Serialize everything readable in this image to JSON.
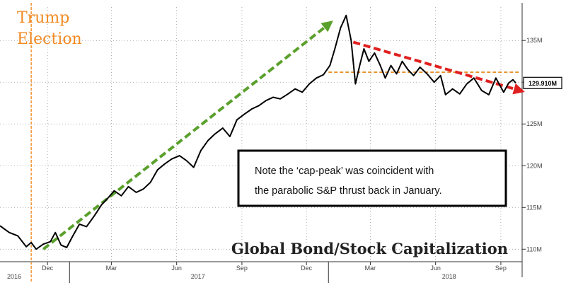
{
  "chart_data": {
    "type": "line",
    "title": "Global Bond/Stock Capitalization",
    "event_label_line1": "Trump",
    "event_label_line2": "Election",
    "event_date": "2016-11-08",
    "note_line1": "Note the ‘cap-peak’ was coincident with",
    "note_line2": "the parabolic S&P thrust back in January.",
    "last_value_label": "129.910M",
    "y_ticks": [
      {
        "value": 110,
        "label": "110M"
      },
      {
        "value": 115,
        "label": "115M"
      },
      {
        "value": 120,
        "label": "120M"
      },
      {
        "value": 125,
        "label": "125M"
      },
      {
        "value": 130,
        "label": ""
      },
      {
        "value": 135,
        "label": "135M"
      }
    ],
    "x_ticks": [
      {
        "date": "2016-12-01",
        "label": "Dec"
      },
      {
        "date": "2017-03-01",
        "label": "Mar"
      },
      {
        "date": "2017-06-01",
        "label": "Jun"
      },
      {
        "date": "2017-09-01",
        "label": "Sep"
      },
      {
        "date": "2017-12-01",
        "label": "Dec"
      },
      {
        "date": "2018-03-01",
        "label": "Mar"
      },
      {
        "date": "2018-06-01",
        "label": "Jun"
      },
      {
        "date": "2018-09-01",
        "label": "Sep"
      }
    ],
    "year_labels": [
      {
        "date": "2016-10-15",
        "label": "2016"
      },
      {
        "date": "2017-07-01",
        "label": "2017"
      },
      {
        "date": "2018-06-20",
        "label": "2018"
      }
    ],
    "ylim": [
      108.5,
      139
    ],
    "xlim": [
      "2016-09-25",
      "2018-10-01"
    ],
    "series": [
      {
        "color": "#000000",
        "points": [
          [
            "2016-09-25",
            112.8
          ],
          [
            "2016-10-08",
            112.0
          ],
          [
            "2016-10-20",
            111.6
          ],
          [
            "2016-11-01",
            110.3
          ],
          [
            "2016-11-08",
            110.8
          ],
          [
            "2016-11-15",
            110.0
          ],
          [
            "2016-11-25",
            110.6
          ],
          [
            "2016-12-05",
            110.9
          ],
          [
            "2016-12-12",
            112.0
          ],
          [
            "2016-12-20",
            110.5
          ],
          [
            "2016-12-28",
            110.2
          ],
          [
            "2017-01-05",
            111.5
          ],
          [
            "2017-01-15",
            113.0
          ],
          [
            "2017-01-25",
            112.7
          ],
          [
            "2017-02-05",
            114.0
          ],
          [
            "2017-02-15",
            115.3
          ],
          [
            "2017-02-25",
            116.2
          ],
          [
            "2017-03-05",
            117.0
          ],
          [
            "2017-03-15",
            116.4
          ],
          [
            "2017-03-25",
            117.5
          ],
          [
            "2017-04-05",
            116.8
          ],
          [
            "2017-04-15",
            117.2
          ],
          [
            "2017-04-25",
            118.0
          ],
          [
            "2017-05-05",
            119.5
          ],
          [
            "2017-05-15",
            120.2
          ],
          [
            "2017-05-25",
            120.8
          ],
          [
            "2017-06-05",
            121.2
          ],
          [
            "2017-06-15",
            120.6
          ],
          [
            "2017-06-25",
            119.8
          ],
          [
            "2017-07-05",
            121.8
          ],
          [
            "2017-07-15",
            123.0
          ],
          [
            "2017-07-25",
            123.8
          ],
          [
            "2017-08-05",
            124.5
          ],
          [
            "2017-08-15",
            123.5
          ],
          [
            "2017-08-25",
            125.5
          ],
          [
            "2017-09-05",
            126.2
          ],
          [
            "2017-09-15",
            126.8
          ],
          [
            "2017-09-25",
            127.2
          ],
          [
            "2017-10-05",
            127.8
          ],
          [
            "2017-10-15",
            128.2
          ],
          [
            "2017-10-25",
            128.0
          ],
          [
            "2017-11-05",
            128.6
          ],
          [
            "2017-11-15",
            129.2
          ],
          [
            "2017-11-25",
            128.8
          ],
          [
            "2017-12-05",
            129.8
          ],
          [
            "2017-12-15",
            130.5
          ],
          [
            "2017-12-25",
            130.9
          ],
          [
            "2018-01-03",
            132.0
          ],
          [
            "2018-01-10",
            134.0
          ],
          [
            "2018-01-18",
            136.5
          ],
          [
            "2018-01-26",
            138.0
          ],
          [
            "2018-02-02",
            135.0
          ],
          [
            "2018-02-08",
            129.8
          ],
          [
            "2018-02-14",
            132.0
          ],
          [
            "2018-02-20",
            134.0
          ],
          [
            "2018-02-27",
            132.5
          ],
          [
            "2018-03-07",
            133.5
          ],
          [
            "2018-03-15",
            132.0
          ],
          [
            "2018-03-22",
            130.5
          ],
          [
            "2018-03-30",
            132.0
          ],
          [
            "2018-04-07",
            131.0
          ],
          [
            "2018-04-15",
            132.5
          ],
          [
            "2018-04-23",
            131.5
          ],
          [
            "2018-05-01",
            130.8
          ],
          [
            "2018-05-10",
            131.8
          ],
          [
            "2018-05-20",
            131.0
          ],
          [
            "2018-05-30",
            130.0
          ],
          [
            "2018-06-08",
            130.8
          ],
          [
            "2018-06-15",
            128.5
          ],
          [
            "2018-06-25",
            129.2
          ],
          [
            "2018-07-05",
            128.6
          ],
          [
            "2018-07-15",
            129.8
          ],
          [
            "2018-07-25",
            130.5
          ],
          [
            "2018-08-05",
            129.0
          ],
          [
            "2018-08-15",
            128.5
          ],
          [
            "2018-08-25",
            130.5
          ],
          [
            "2018-09-05",
            128.8
          ],
          [
            "2018-09-12",
            129.9
          ],
          [
            "2018-09-18",
            130.3
          ],
          [
            "2018-09-22",
            129.91
          ]
        ]
      }
    ],
    "annotations": {
      "uptrend_arrow": {
        "from": [
          "2016-11-25",
          110.0
        ],
        "to": [
          "2018-01-02",
          137.0
        ],
        "color": "#5aa02c"
      },
      "downtrend_arrow": {
        "from": [
          "2018-02-05",
          134.8
        ],
        "to": [
          "2018-09-28",
          129.0
        ],
        "color": "#e02020"
      },
      "peak_level_line": {
        "from": "2018-01-01",
        "to": "2018-09-28",
        "value": 131.2,
        "color": "#e8922a"
      }
    },
    "colors": {
      "event_line": "#f08a24",
      "event_text": "#f08a24"
    },
    "grid": true
  }
}
